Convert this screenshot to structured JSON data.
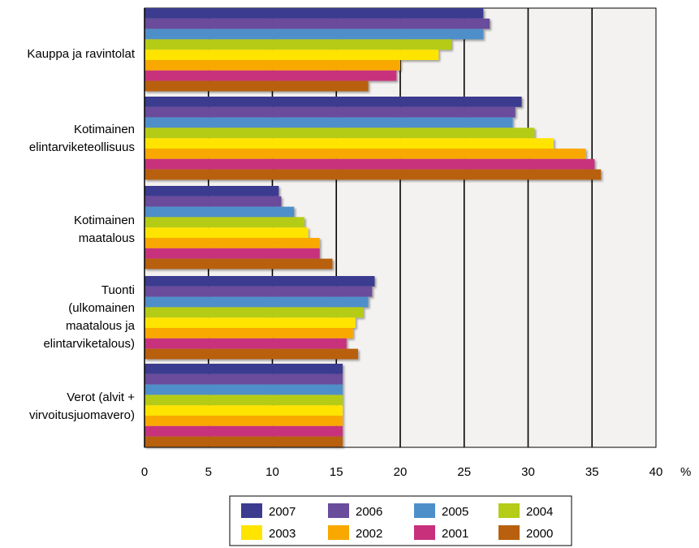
{
  "chart_data": {
    "type": "bar",
    "orientation": "horizontal",
    "title": "",
    "xlabel": "",
    "ylabel": "",
    "unit_label": "%",
    "xlim": [
      0,
      40
    ],
    "xticks": [
      "0",
      "5",
      "10",
      "15",
      "20",
      "25",
      "30",
      "35",
      "40"
    ],
    "grid": true,
    "legend_position": "bottom",
    "categories": [
      [
        "Kauppa ja ravintolat"
      ],
      [
        "Kotimainen",
        "elintarviketeollisuus"
      ],
      [
        "Kotimainen",
        "maatalous"
      ],
      [
        "Tuonti",
        "(ulkomainen",
        "maatalous ja",
        "elintarviketalous)"
      ],
      [
        "Verot (alvit +",
        "virvoitusjuomavero)"
      ]
    ],
    "series": [
      {
        "name": "2007",
        "color": "#3b3b8f",
        "values": [
          26.5,
          29.5,
          10.5,
          18.0,
          15.5
        ]
      },
      {
        "name": "2006",
        "color": "#6a4c9c",
        "values": [
          27.0,
          29.0,
          10.7,
          17.8,
          15.5
        ]
      },
      {
        "name": "2005",
        "color": "#4f8fc9",
        "values": [
          26.5,
          28.8,
          11.7,
          17.5,
          15.5
        ]
      },
      {
        "name": "2004",
        "color": "#b5cc18",
        "values": [
          24.0,
          30.5,
          12.5,
          17.1,
          15.5
        ]
      },
      {
        "name": "2003",
        "color": "#ffe400",
        "values": [
          23.0,
          32.0,
          12.8,
          16.5,
          15.5
        ]
      },
      {
        "name": "2002",
        "color": "#f9a800",
        "values": [
          20.0,
          34.5,
          13.7,
          16.3,
          15.5
        ]
      },
      {
        "name": "2001",
        "color": "#c8307c",
        "values": [
          19.7,
          35.2,
          13.7,
          15.8,
          15.5
        ]
      },
      {
        "name": "2000",
        "color": "#b8600e",
        "values": [
          17.5,
          35.7,
          14.7,
          16.7,
          15.5
        ]
      }
    ],
    "colors": {
      "plot_background": "#f4f2f0",
      "frame": "#000000",
      "gridline": "#000000"
    }
  }
}
